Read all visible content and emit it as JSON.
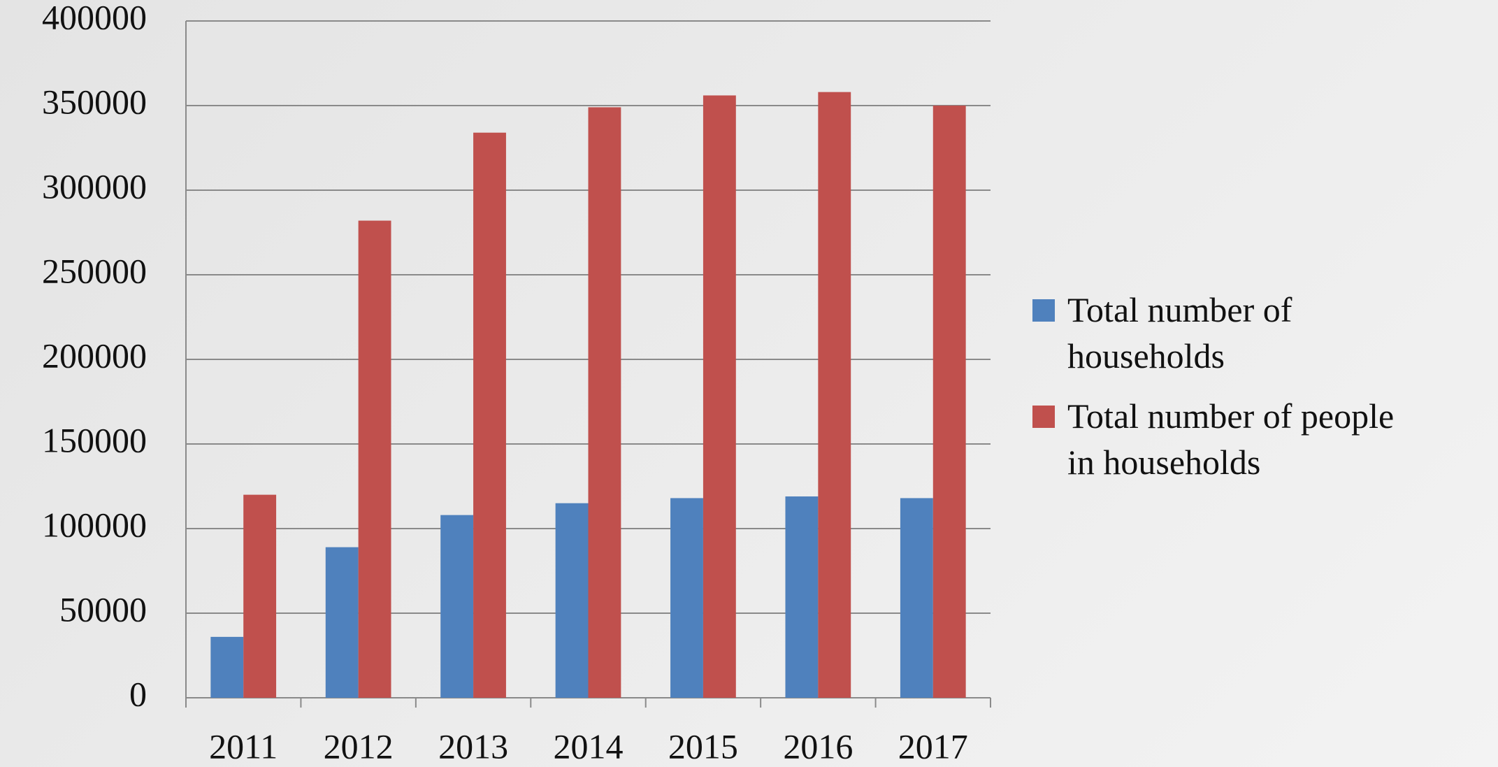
{
  "chart_data": {
    "type": "bar",
    "categories": [
      "2011",
      "2012",
      "2013",
      "2014",
      "2015",
      "2016",
      "2017"
    ],
    "series": [
      {
        "name": "Total number of households",
        "color": "#4f81bd",
        "values": [
          36000,
          89000,
          108000,
          115000,
          118000,
          119000,
          118000
        ]
      },
      {
        "name": "Total number of people in households",
        "color": "#c0504d",
        "values": [
          120000,
          282000,
          334000,
          349000,
          356000,
          358000,
          350000
        ]
      }
    ],
    "ylim": [
      0,
      400000
    ],
    "yticks": [
      0,
      50000,
      100000,
      150000,
      200000,
      250000,
      300000,
      350000,
      400000
    ],
    "grid": true,
    "legend": "right"
  }
}
